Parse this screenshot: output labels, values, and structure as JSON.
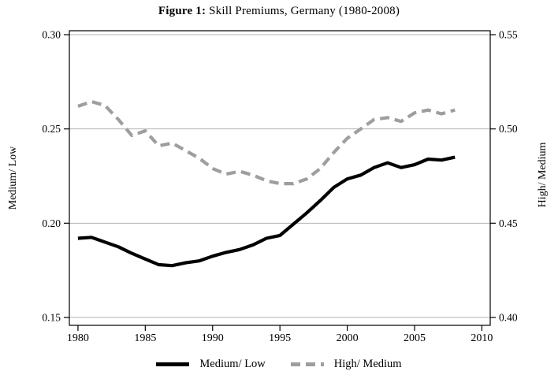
{
  "figure": {
    "title_prefix": "Figure 1:",
    "title_rest": " Skill Premiums, Germany (1980-2008)"
  },
  "left_axis": {
    "title": "Medium/ Low",
    "tick_labels": [
      "0.30",
      "0.25",
      "0.20",
      "0.15"
    ],
    "tick_values": [
      0.3,
      0.25,
      0.2,
      0.15
    ],
    "range": [
      0.15,
      0.3
    ]
  },
  "right_axis": {
    "title": "High/ Medium",
    "tick_labels": [
      "0.55",
      "0.50",
      "0.45",
      "0.40"
    ],
    "tick_values": [
      0.55,
      0.5,
      0.45,
      0.4
    ],
    "range": [
      0.4,
      0.55
    ]
  },
  "x_axis": {
    "tick_labels": [
      "1980",
      "1985",
      "1990",
      "1995",
      "2000",
      "2005",
      "2010"
    ],
    "tick_values": [
      1980,
      1985,
      1990,
      1995,
      2000,
      2005,
      2010
    ]
  },
  "legend": {
    "items": [
      {
        "label": "Medium/ Low",
        "style": "solid",
        "color": "#000000"
      },
      {
        "label": "High/ Medium",
        "style": "dashed",
        "color": "#9e9e9e"
      }
    ]
  },
  "colors": {
    "medium_low_line": "#000000",
    "high_medium_line": "#9e9e9e",
    "gridline": "#b3b3b3",
    "frame": "#000000",
    "text": "#000000"
  },
  "chart_data": {
    "type": "line",
    "title": "Figure 1: Skill Premiums, Germany (1980-2008)",
    "x": [
      1980,
      1981,
      1982,
      1983,
      1984,
      1985,
      1986,
      1987,
      1988,
      1989,
      1990,
      1991,
      1992,
      1993,
      1994,
      1995,
      1996,
      1997,
      1998,
      1999,
      2000,
      2001,
      2002,
      2003,
      2004,
      2005,
      2006,
      2007,
      2008
    ],
    "series": [
      {
        "name": "Medium/ Low",
        "axis": "left",
        "line": "solid",
        "color": "#000000",
        "values": [
          0.192,
          0.1925,
          0.19,
          0.1875,
          0.184,
          0.181,
          0.178,
          0.1775,
          0.179,
          0.18,
          0.1825,
          0.1845,
          0.186,
          0.1885,
          0.192,
          0.1935,
          0.1995,
          0.2055,
          0.212,
          0.219,
          0.2235,
          0.2255,
          0.2295,
          0.232,
          0.2295,
          0.231,
          0.234,
          0.2335,
          0.235
        ]
      },
      {
        "name": "High/ Medium",
        "axis": "right",
        "line": "dashed",
        "color": "#9e9e9e",
        "values": [
          0.512,
          0.5145,
          0.5125,
          0.505,
          0.4965,
          0.499,
          0.491,
          0.4925,
          0.4885,
          0.4845,
          0.479,
          0.476,
          0.4775,
          0.4755,
          0.4725,
          0.471,
          0.471,
          0.4735,
          0.479,
          0.4875,
          0.495,
          0.5,
          0.505,
          0.506,
          0.504,
          0.5085,
          0.51,
          0.508,
          0.51
        ]
      }
    ],
    "left_ylim": [
      0.15,
      0.3
    ],
    "right_ylim": [
      0.4,
      0.55
    ],
    "xlim": [
      1979.36,
      2010.62
    ],
    "grid": true,
    "legend_position": "bottom"
  }
}
